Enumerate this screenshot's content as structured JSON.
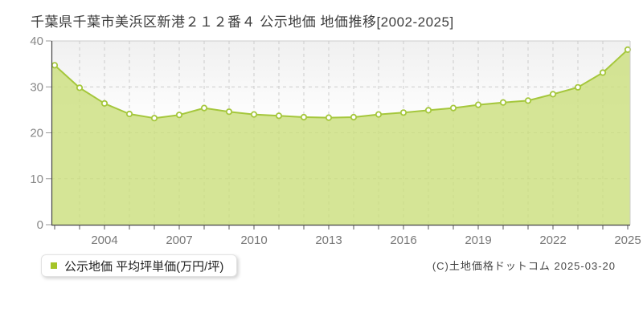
{
  "title": "千葉県千葉市美浜区新港２１２番４ 公示地価 地価推移[2002-2025]",
  "legend": {
    "label": "公示地価 平均坪単価(万円/坪)",
    "marker_color": "#a5c428"
  },
  "footer": {
    "credit": "(C)土地価格ドットコム 2025-03-20"
  },
  "chart_data": {
    "type": "area",
    "title": "千葉県千葉市美浜区新港２１２番４ 公示地価 地価推移[2002-2025]",
    "series_name": "公示地価 平均坪単価(万円/坪)",
    "ylabel": "平均坪単価(万円/坪)",
    "x": [
      2002,
      2003,
      2004,
      2005,
      2006,
      2007,
      2008,
      2009,
      2010,
      2011,
      2012,
      2013,
      2014,
      2015,
      2016,
      2017,
      2018,
      2019,
      2020,
      2021,
      2022,
      2023,
      2024,
      2025
    ],
    "values": [
      34.7,
      29.8,
      26.4,
      24.1,
      23.2,
      23.9,
      25.4,
      24.6,
      24.0,
      23.7,
      23.4,
      23.3,
      23.4,
      24.0,
      24.4,
      24.9,
      25.4,
      26.1,
      26.6,
      27.0,
      28.4,
      29.9,
      33.1,
      38.1
    ],
    "ylim": [
      0,
      40
    ],
    "yticks": [
      0,
      10,
      20,
      30,
      40
    ],
    "xtick_labels": [
      "2004",
      "2007",
      "2010",
      "2013",
      "2016",
      "2019",
      "2022",
      "2025"
    ],
    "grid": true,
    "legend_position": "bottom-left",
    "colors": {
      "area_fill": "#cbdf7c",
      "line": "#a5c73c",
      "marker_fill": "#ffffff",
      "grid": "#cccccc",
      "axis": "#444444",
      "border": "#cccccc",
      "y_tick_label": "#888888",
      "x_tick_label": "#777777"
    }
  }
}
